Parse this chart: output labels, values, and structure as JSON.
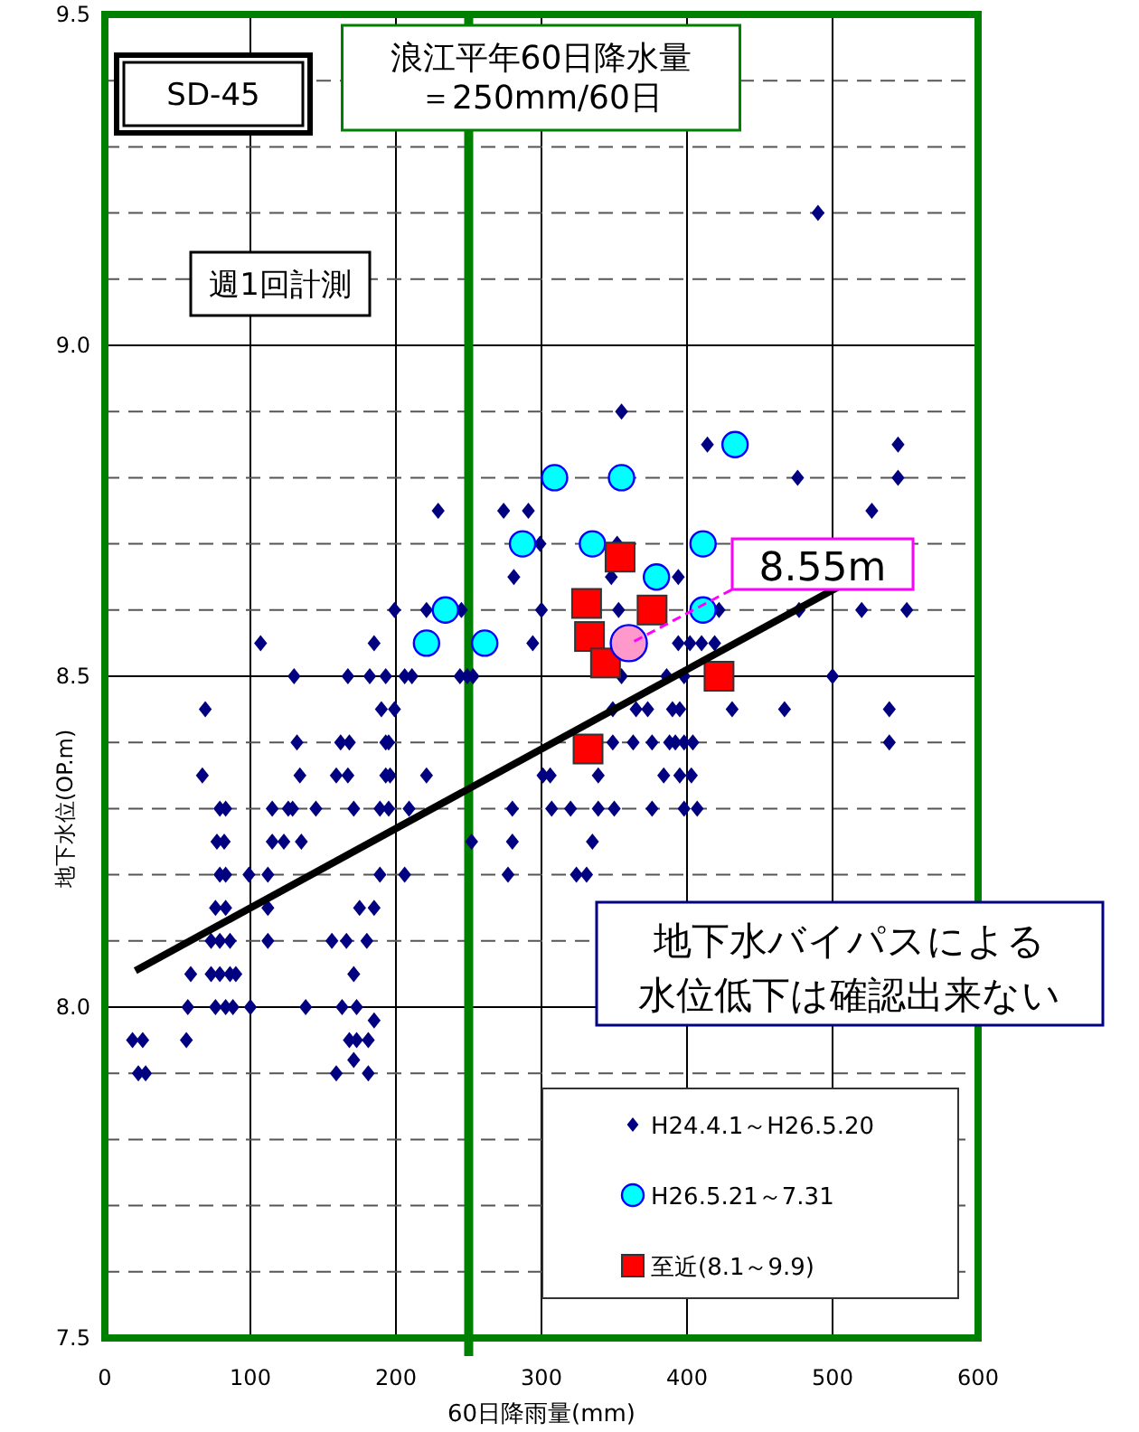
{
  "chart_data": {
    "type": "scatter",
    "xlabel": "60日降雨量(mm)",
    "ylabel": "地下水位(OP.m)",
    "xlim": [
      0,
      600
    ],
    "xticks": [
      0,
      100,
      200,
      300,
      400,
      500,
      600
    ],
    "ylim": [
      7.5,
      9.5
    ],
    "yticks": [
      7.5,
      {
        "value": 7.6,
        "label": null
      },
      {
        "value": 7.7,
        "label": null
      },
      {
        "value": 7.8,
        "label": null
      },
      {
        "value": 7.9,
        "label": null
      },
      {
        "value": 8.0,
        "label": "8.0"
      },
      {
        "value": 8.1,
        "label": null
      },
      {
        "value": 8.2,
        "label": null
      },
      {
        "value": 8.3,
        "label": null
      },
      {
        "value": 8.4,
        "label": null
      },
      8.5,
      {
        "value": 8.6,
        "label": null
      },
      {
        "value": 8.7,
        "label": null
      },
      {
        "value": 8.8,
        "label": null
      },
      {
        "value": 8.9,
        "label": null
      },
      {
        "value": 9.0,
        "label": "9.0"
      },
      {
        "value": 9.1,
        "label": null
      },
      {
        "value": 9.2,
        "label": null
      },
      {
        "value": 9.3,
        "label": null
      },
      {
        "value": 9.4,
        "label": null
      },
      9.5
    ],
    "grid": true,
    "legend": "bottom right",
    "series": [
      {
        "name": "H24.4.1～H26.5.20",
        "color": "#000080",
        "marker": "diamond",
        "x": [
          107,
          185,
          294,
          394,
          402,
          410,
          419,
          130,
          167,
          182,
          193,
          206,
          211,
          244,
          249,
          253,
          355,
          386,
          398,
          500,
          69,
          190,
          199,
          349,
          365,
          373,
          390,
          395,
          431,
          467,
          539,
          132,
          162,
          168,
          193,
          195,
          349,
          363,
          376,
          388,
          392,
          398,
          404,
          539,
          67,
          134,
          159,
          167,
          193,
          196,
          221,
          301,
          306,
          339,
          384,
          395,
          403,
          79,
          83,
          115,
          126,
          129,
          145,
          171,
          189,
          195,
          209,
          280,
          307,
          320,
          339,
          350,
          376,
          398,
          407,
          77,
          82,
          115,
          123,
          135,
          252,
          280,
          335,
          79,
          83,
          99,
          112,
          189,
          206,
          277,
          324,
          331,
          76,
          83,
          112,
          175,
          185,
          73,
          79,
          86,
          112,
          156,
          166,
          180,
          59,
          73,
          79,
          86,
          90,
          171,
          57,
          76,
          83,
          88,
          100,
          138,
          163,
          173,
          185,
          19,
          26,
          56,
          168,
          173,
          181,
          171,
          23,
          28,
          159,
          181,
          199,
          221,
          245,
          300,
          353,
          422,
          477,
          520,
          551,
          281,
          348,
          394,
          299,
          352,
          229,
          274,
          291,
          527,
          476,
          545,
          414,
          545,
          355,
          490
        ],
        "values": [
          8.55,
          8.55,
          8.55,
          8.55,
          8.55,
          8.55,
          8.55,
          8.5,
          8.5,
          8.5,
          8.5,
          8.5,
          8.5,
          8.5,
          8.5,
          8.5,
          8.5,
          8.5,
          8.5,
          8.5,
          8.45,
          8.45,
          8.45,
          8.45,
          8.45,
          8.45,
          8.45,
          8.45,
          8.45,
          8.45,
          8.45,
          8.4,
          8.4,
          8.4,
          8.4,
          8.4,
          8.4,
          8.4,
          8.4,
          8.4,
          8.4,
          8.4,
          8.4,
          8.4,
          8.35,
          8.35,
          8.35,
          8.35,
          8.35,
          8.35,
          8.35,
          8.35,
          8.35,
          8.35,
          8.35,
          8.35,
          8.35,
          8.3,
          8.3,
          8.3,
          8.3,
          8.3,
          8.3,
          8.3,
          8.3,
          8.3,
          8.3,
          8.3,
          8.3,
          8.3,
          8.3,
          8.3,
          8.3,
          8.3,
          8.3,
          8.25,
          8.25,
          8.25,
          8.25,
          8.25,
          8.25,
          8.25,
          8.25,
          8.2,
          8.2,
          8.2,
          8.2,
          8.2,
          8.2,
          8.2,
          8.2,
          8.2,
          8.15,
          8.15,
          8.15,
          8.15,
          8.15,
          8.1,
          8.1,
          8.1,
          8.1,
          8.1,
          8.1,
          8.1,
          8.05,
          8.05,
          8.05,
          8.05,
          8.05,
          8.05,
          8.0,
          8.0,
          8.0,
          8.0,
          8.0,
          8.0,
          8.0,
          8.0,
          7.98,
          7.95,
          7.95,
          7.95,
          7.95,
          7.95,
          7.95,
          7.92,
          7.9,
          7.9,
          7.9,
          7.9,
          8.6,
          8.6,
          8.6,
          8.6,
          8.6,
          8.6,
          8.6,
          8.6,
          8.6,
          8.65,
          8.65,
          8.65,
          8.7,
          8.7,
          8.75,
          8.75,
          8.75,
          8.75,
          8.8,
          8.8,
          8.85,
          8.85,
          8.9,
          9.2
        ]
      },
      {
        "name": "H26.5.21～7.31",
        "color": "#00ffff",
        "marker": "circle",
        "x": [
          221,
          234,
          261,
          287,
          309,
          335,
          355,
          379,
          411,
          411,
          433
        ],
        "values": [
          8.55,
          8.6,
          8.55,
          8.7,
          8.8,
          8.7,
          8.8,
          8.65,
          8.7,
          8.6,
          8.85
        ]
      },
      {
        "name": "至近(8.1～9.9)",
        "color": "#ff0000",
        "marker": "square",
        "x": [
          331,
          333,
          344,
          354,
          376,
          422,
          332
        ],
        "values": [
          8.61,
          8.56,
          8.52,
          8.68,
          8.6,
          8.5,
          8.39
        ]
      },
      {
        "color": "#ff99cc",
        "marker": "circle",
        "x": [
          360
        ],
        "values": [
          8.55
        ]
      },
      {
        "type": "line",
        "color": "#000000",
        "marker": "none",
        "x": [
          21,
          554
        ],
        "values": [
          8.055,
          8.695
        ]
      }
    ],
    "ref_lines": [
      {
        "axis": "x",
        "value": 250,
        "label": "浪江平年60日降水量＝250mm/60日",
        "color": "#008000"
      }
    ],
    "annotations": [
      "SD-45",
      "週1回計測",
      "地下水バイパスによる",
      "水位低下は確認出来ない",
      {
        "text": "8.55m",
        "x": 360,
        "y": 8.55
      }
    ]
  }
}
